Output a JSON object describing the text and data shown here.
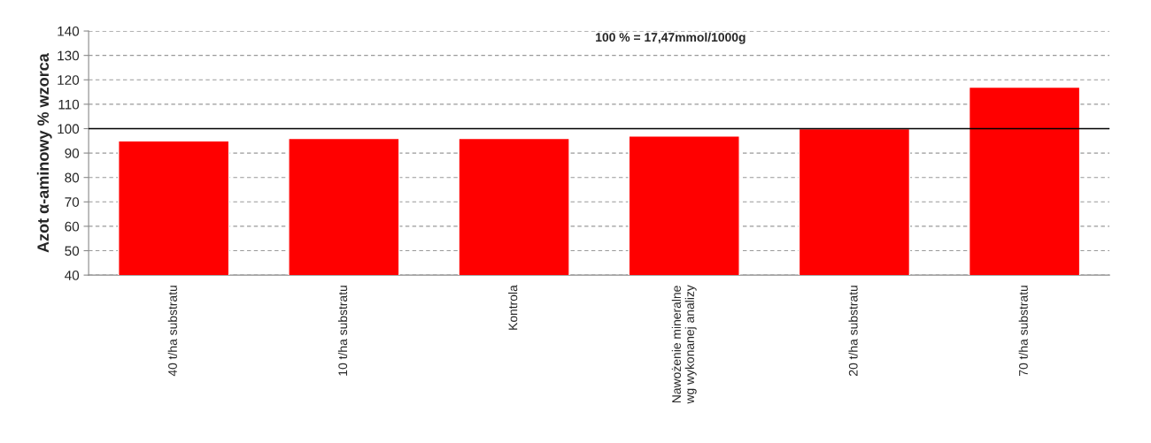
{
  "chart_data": {
    "type": "bar",
    "ylabel": "Azot α-aminowy % wzorca",
    "categories": [
      "40 t/ha substratu",
      "10 t/ha substratu",
      "Kontrola",
      "Nawożenie mineralne wg wykonanej analizy",
      "20 t/ha substratu",
      "70 t/ha substratu"
    ],
    "values": [
      95,
      96,
      96,
      97,
      100,
      117
    ],
    "color": "#ff0000",
    "ylim": [
      40,
      140
    ],
    "yticks": [
      40,
      50,
      60,
      70,
      80,
      90,
      100,
      110,
      120,
      130,
      140
    ],
    "grid": "y",
    "ref_lines": [
      {
        "axis": "y",
        "value": 100,
        "color": "#000000",
        "line_style": "solid"
      }
    ],
    "annotations": [
      "100 % = 17,47mmol/1000g"
    ]
  }
}
